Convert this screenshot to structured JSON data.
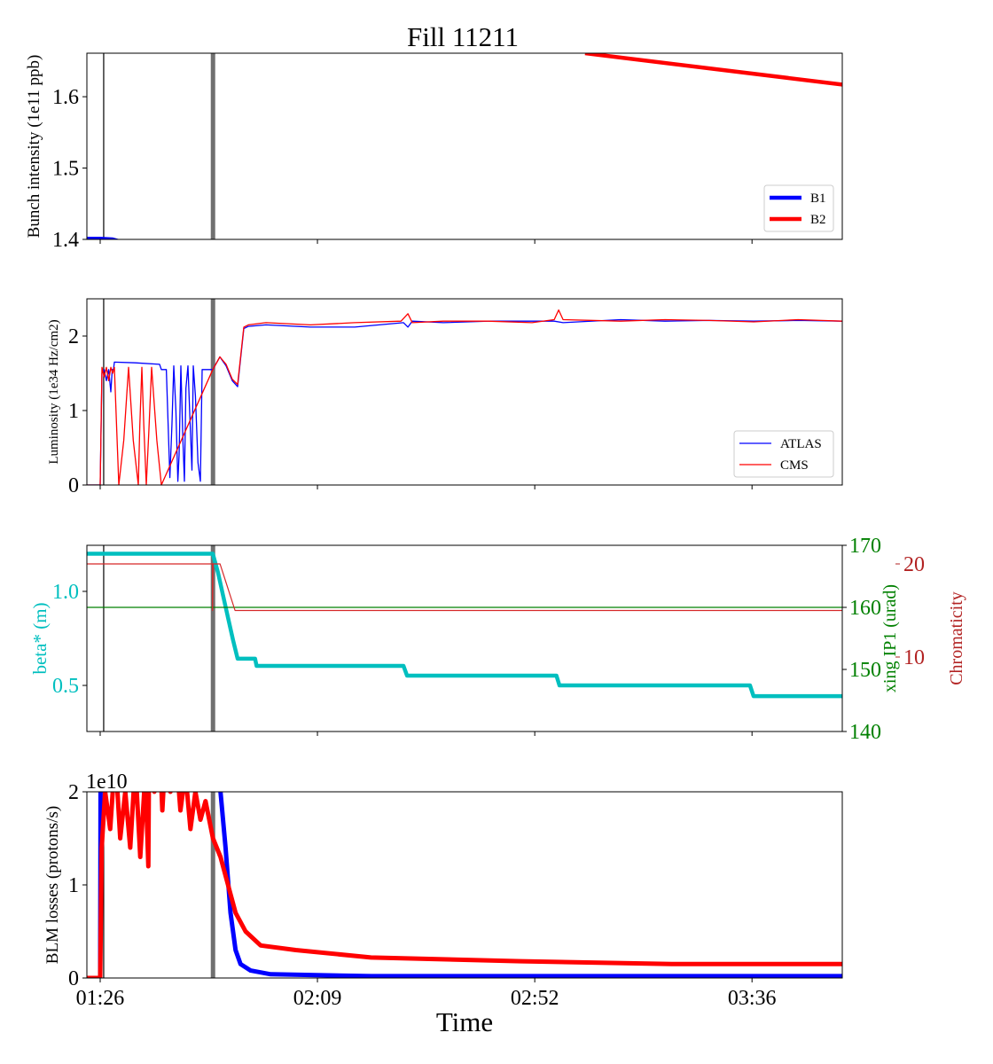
{
  "chart_data": {
    "type": "line",
    "title": "Fill 11211",
    "xlabel": "Time",
    "x_unit": "minutes since 00:00",
    "xlim": [
      83.35,
      234.0
    ],
    "xticks": [
      {
        "value": 86.0,
        "label": "01:26"
      },
      {
        "value": 129.33,
        "label": "02:09"
      },
      {
        "value": 172.67,
        "label": "02:52"
      },
      {
        "value": 216.0,
        "label": "03:36"
      }
    ],
    "markers": [
      {
        "name": "black-marker",
        "x": 86.7,
        "color": "#000000"
      },
      {
        "name": "gray-marker",
        "x": 108.5,
        "color": "#707070"
      }
    ],
    "panels": [
      {
        "name": "bunch-intensity",
        "axes": [
          {
            "side": "left",
            "label": "Bunch intensity (1e11 ppb)",
            "color": "#000000",
            "ylim": [
              1.4,
              1.661
            ],
            "ticks": [
              {
                "value": 1.4,
                "label": "1.4"
              },
              {
                "value": 1.5,
                "label": "1.5"
              },
              {
                "value": 1.6,
                "label": "1.6"
              }
            ],
            "series": [
              {
                "name": "B1",
                "color": "#0000ff",
                "x": [
                  83.35,
                  86.0,
                  88.5,
                  90.0,
                  100.0
                ],
                "y": [
                  1.401,
                  1.401,
                  1.4,
                  1.397,
                  1.38
                ]
              },
              {
                "name": "B2",
                "color": "#ff0000",
                "x": [
                  182.7,
                  234.0
                ],
                "y": [
                  1.661,
                  1.617
                ]
              }
            ]
          }
        ],
        "legend": {
          "position": "bottom-right",
          "entries": [
            "B1",
            "B2"
          ]
        }
      },
      {
        "name": "luminosity",
        "axes": [
          {
            "side": "left",
            "label": "Luminosity (1e34 Hz/cm2)",
            "color": "#000000",
            "ylim": [
              0,
              2.5
            ],
            "ticks": [
              {
                "value": 0,
                "label": "0"
              },
              {
                "value": 1,
                "label": "1"
              },
              {
                "value": 2,
                "label": "2"
              }
            ],
            "series": [
              {
                "name": "ATLAS",
                "color": "#0000ff",
                "x": [
                  83.35,
                  86.0,
                  86.35,
                  86.8,
                  87.24,
                  87.7,
                  88.12,
                  88.4,
                  88.65,
                  88.83,
                  93.0,
                  97.85,
                  98.2,
                  99.2,
                  99.9,
                  100.3,
                  100.68,
                  101.1,
                  101.5,
                  101.74,
                  102.1,
                  102.5,
                  102.8,
                  103.1,
                  103.5,
                  103.9,
                  104.3,
                  104.57,
                  105.0,
                  105.5,
                  105.98,
                  106.34,
                  108.46,
                  109.88,
                  111.11,
                  112.35,
                  113.41,
                  114.65,
                  115.54,
                  119.07,
                  127.9,
                  136.76,
                  146.5,
                  147.37,
                  148.25,
                  154.44,
                  163.29,
                  172.13,
                  176.55,
                  178.32,
                  189.8,
                  198.66,
                  207.5,
                  216.35,
                  225.2,
                  234.0
                ],
                "y": [
                  0,
                  0,
                  1.5,
                  1.55,
                  1.4,
                  1.55,
                  1.25,
                  1.55,
                  1.55,
                  1.65,
                  1.64,
                  1.62,
                  1.55,
                  1.55,
                  0.1,
                  0.8,
                  1.6,
                  1.0,
                  0.05,
                  0.4,
                  1.6,
                  0.6,
                  0.05,
                  1.3,
                  1.6,
                  0.9,
                  0.2,
                  1.6,
                  1.2,
                  0.3,
                  0.05,
                  1.55,
                  1.55,
                  1.72,
                  1.6,
                  1.4,
                  1.32,
                  2.1,
                  2.13,
                  2.15,
                  2.12,
                  2.12,
                  2.18,
                  2.12,
                  2.2,
                  2.18,
                  2.2,
                  2.2,
                  2.2,
                  2.18,
                  2.22,
                  2.2,
                  2.21,
                  2.2,
                  2.21,
                  2.2
                ]
              },
              {
                "name": "CMS",
                "color": "#ff0000",
                "x": [
                  83.35,
                  86.0,
                  86.35,
                  86.8,
                  87.24,
                  87.7,
                  88.12,
                  88.5,
                  88.83,
                  89.71,
                  90.7,
                  91.66,
                  92.6,
                  93.6,
                  93.9,
                  94.31,
                  94.7,
                  95.2,
                  95.7,
                  96.26,
                  97.3,
                  98.2,
                  108.46,
                  109.88,
                  111.11,
                  112.35,
                  113.41,
                  114.65,
                  115.54,
                  119.07,
                  127.9,
                  136.76,
                  146.0,
                  147.37,
                  148.25,
                  154.44,
                  163.29,
                  172.13,
                  176.55,
                  177.44,
                  178.32,
                  189.8,
                  198.66,
                  207.5,
                  216.35,
                  225.2,
                  234.0
                ],
                "y": [
                  0,
                  0,
                  1.58,
                  1.45,
                  1.58,
                  1.4,
                  1.58,
                  1.5,
                  1.58,
                  0.0,
                  0.6,
                  1.58,
                  0.6,
                  0.0,
                  0.8,
                  1.58,
                  0.8,
                  0.0,
                  0.7,
                  1.58,
                  0.6,
                  0.0,
                  1.55,
                  1.72,
                  1.62,
                  1.42,
                  1.35,
                  2.12,
                  2.15,
                  2.18,
                  2.15,
                  2.18,
                  2.2,
                  2.3,
                  2.18,
                  2.2,
                  2.2,
                  2.18,
                  2.22,
                  2.35,
                  2.22,
                  2.2,
                  2.22,
                  2.21,
                  2.19,
                  2.22,
                  2.2
                ]
              }
            ]
          }
        ],
        "legend": {
          "position": "bottom-right",
          "entries": [
            "ATLAS",
            "CMS"
          ]
        }
      },
      {
        "name": "optics",
        "axes": [
          {
            "side": "left",
            "label": "beta* (m)",
            "color": "#00bfbf",
            "ylim": [
              0.255,
              1.245
            ],
            "ticks": [
              {
                "value": 0.5,
                "label": "0.5"
              },
              {
                "value": 1.0,
                "label": "1.0"
              }
            ],
            "series": [
              {
                "name": "beta*",
                "color": "#00bfbf",
                "x": [
                  83.35,
                  108.46,
                  109.5,
                  110.5,
                  111.5,
                  112.5,
                  113.41,
                  115.0,
                  116.9,
                  117.2,
                  146.5,
                  147.2,
                  177.0,
                  177.6,
                  215.6,
                  216.3,
                  234.0
                ],
                "y": [
                  1.2,
                  1.2,
                  1.1,
                  0.98,
                  0.86,
                  0.74,
                  0.642,
                  0.642,
                  0.642,
                  0.604,
                  0.604,
                  0.552,
                  0.552,
                  0.5,
                  0.5,
                  0.443,
                  0.443
                ]
              }
            ]
          },
          {
            "side": "right",
            "label": "xing IP1 (urad)",
            "color": "#008000",
            "ylim": [
              140,
              170
            ],
            "ticks": [
              {
                "value": 140,
                "label": "140"
              },
              {
                "value": 150,
                "label": "150"
              },
              {
                "value": 160,
                "label": "160"
              },
              {
                "value": 170,
                "label": "170"
              }
            ],
            "series": [
              {
                "name": "xing IP1",
                "color": "#008000",
                "x": [
                  83.35,
                  234.0
                ],
                "y": [
                  160,
                  160
                ]
              }
            ]
          },
          {
            "side": "right-offset",
            "label": "Chromaticity",
            "color": "#b22222",
            "ylim": [
              2,
              22
            ],
            "ticks": [
              {
                "value": 10,
                "label": "10"
              },
              {
                "value": 20,
                "label": "20"
              }
            ],
            "series": [
              {
                "name": "Chromaticity",
                "color": "#d62728",
                "x": [
                  83.35,
                  108.4,
                  108.4,
                  108.5,
                  109.9,
                  112.9,
                  234.0
                ],
                "y": [
                  20,
                  20,
                  15,
                  20,
                  20,
                  15,
                  15
                ]
              }
            ]
          }
        ]
      },
      {
        "name": "blm-losses",
        "offset_text": "1e10",
        "axes": [
          {
            "side": "left",
            "label": "BLM losses (protons/s)",
            "color": "#000000",
            "ylim": [
              0,
              2
            ],
            "ticks": [
              {
                "value": 0,
                "label": "0"
              },
              {
                "value": 1,
                "label": "1"
              },
              {
                "value": 2,
                "label": "2"
              }
            ],
            "series": [
              {
                "name": "B1 losses",
                "color": "#0000ff",
                "x": [
                  83.35,
                  86.0,
                  86.2,
                  86.6,
                  87.0,
                  87.8,
                  88.6,
                  89.4,
                  90.2,
                  91.0,
                  91.8,
                  92.6,
                  93.4,
                  94.2,
                  95.0,
                  95.8,
                  96.6,
                  97.2,
                  97.8,
                  98.6,
                  99.4,
                  100.2,
                  101.0,
                  101.8,
                  102.6,
                  103.4,
                  104.2,
                  105.0,
                  106.0,
                  107.0,
                  108.0,
                  109.0,
                  110.0,
                  111.0,
                  112.0,
                  113.0,
                  114.0,
                  116.0,
                  120.0,
                  140.0,
                  180.0,
                  234.0
                ],
                "y": [
                  0,
                  0,
                  5.2,
                  3.0,
                  3.6,
                  3.2,
                  4.3,
                  3.4,
                  2.6,
                  3.6,
                  2.4,
                  4.8,
                  3.5,
                  2.8,
                  4.5,
                  3.0,
                  3.8,
                  5.5,
                  4.2,
                  5.0,
                  3.8,
                  4.4,
                  3.6,
                  4.0,
                  3.2,
                  3.4,
                  2.6,
                  3.4,
                  3.0,
                  2.8,
                  2.9,
                  2.7,
                  2.0,
                  1.4,
                  0.7,
                  0.3,
                  0.15,
                  0.08,
                  0.04,
                  0.02,
                  0.02,
                  0.02
                ]
              },
              {
                "name": "B2 losses",
                "color": "#ff0000",
                "x": [
                  83.35,
                  86.0,
                  86.3,
                  87.0,
                  88.0,
                  89.0,
                  90.0,
                  91.0,
                  92.0,
                  93.0,
                  94.0,
                  95.0,
                  95.6,
                  96.2,
                  96.8,
                  97.6,
                  98.4,
                  99.2,
                  100.0,
                  101.0,
                  102.0,
                  103.0,
                  104.0,
                  105.0,
                  106.0,
                  107.0,
                  108.5,
                  110.0,
                  111.5,
                  113.0,
                  115.0,
                  118.0,
                  125.0,
                  140.0,
                  170.0,
                  200.0,
                  234.0
                ],
                "y": [
                  0,
                  0,
                  1.4,
                  2.0,
                  1.6,
                  2.4,
                  1.5,
                  2.0,
                  1.4,
                  2.3,
                  1.3,
                  2.2,
                  1.2,
                  6.0,
                  2.0,
                  2.8,
                  1.8,
                  2.6,
                  2.0,
                  2.5,
                  1.8,
                  2.2,
                  1.6,
                  2.0,
                  1.7,
                  1.9,
                  1.5,
                  1.3,
                  1.0,
                  0.7,
                  0.5,
                  0.35,
                  0.3,
                  0.22,
                  0.18,
                  0.15,
                  0.15
                ]
              }
            ]
          }
        ]
      }
    ]
  }
}
